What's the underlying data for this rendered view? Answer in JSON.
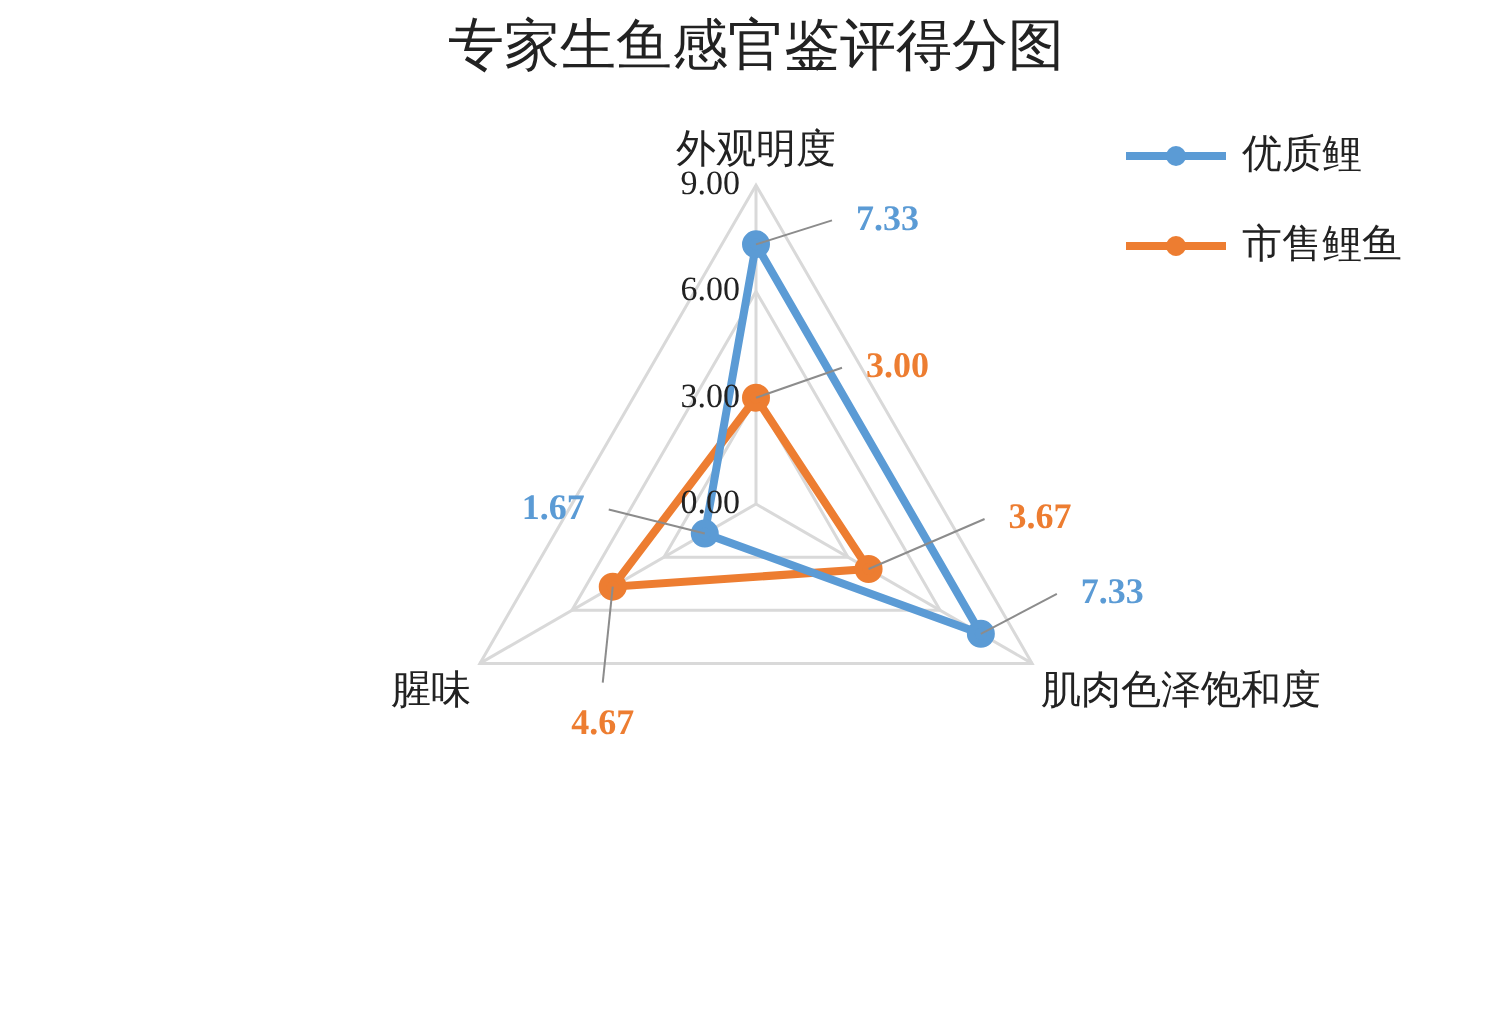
{
  "chart_data": {
    "type": "radar",
    "title": "专家生鱼感官鉴评得分图",
    "categories": [
      "外观明度",
      "肌肉色泽饱和度",
      "腥味"
    ],
    "ylim": [
      0,
      9
    ],
    "yticks": [
      {
        "value": 0,
        "label": "0.00"
      },
      {
        "value": 3,
        "label": "3.00"
      },
      {
        "value": 6,
        "label": "6.00"
      },
      {
        "value": 9,
        "label": "9.00"
      }
    ],
    "grid": true,
    "legend": "top right",
    "marker": "circle",
    "series": [
      {
        "name": "优质鲤",
        "color": "#5b9bd5",
        "values": [
          7.33,
          7.33,
          1.67
        ],
        "value_labels": [
          "7.33",
          "7.33",
          "1.67"
        ]
      },
      {
        "name": "市售鲤鱼",
        "color": "#ed7d31",
        "values": [
          3.0,
          3.67,
          4.67
        ],
        "value_labels": [
          "3.00",
          "3.67",
          "4.67"
        ]
      }
    ]
  }
}
